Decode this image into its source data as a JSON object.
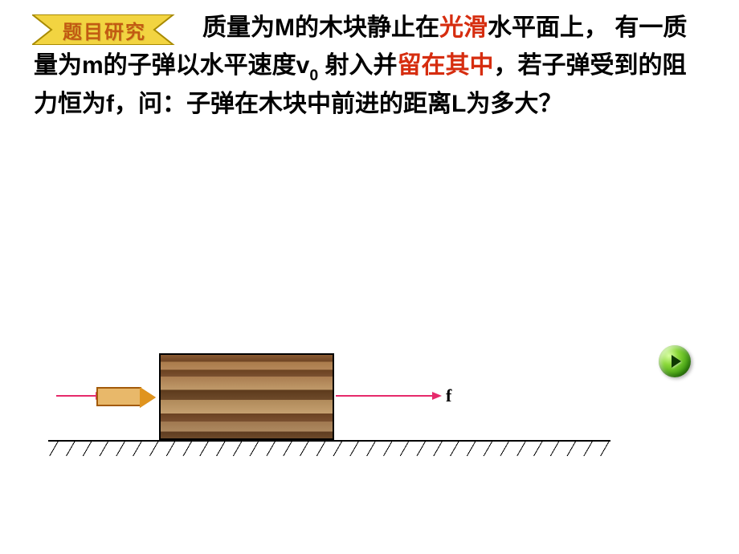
{
  "banner": {
    "label": "题目研究",
    "fill": "#f2d441",
    "stroke": "#a88a00",
    "text_color": "#c25a12"
  },
  "problem": {
    "segments": [
      {
        "t": "质量为M的木块静止在",
        "hl": false
      },
      {
        "t": "光滑",
        "hl": true
      },
      {
        "t": "水平面上，  有一质量为m的子弹以水平速度v",
        "hl": false
      },
      {
        "t": "0",
        "sub": true
      },
      {
        "t": " 射入并",
        "hl": false
      },
      {
        "t": "留在其中",
        "hl": true
      },
      {
        "t": "，若子弹受到的阻力恒为f，问：子弹在木块中前进的距离L为多大？",
        "hl": false
      }
    ],
    "highlight_color": "#d62d0f",
    "font_size": 30
  },
  "diagram": {
    "f_label": "f",
    "arrow_color": "#e62a6b",
    "bullet_fill": "#e8b86a",
    "bullet_border": "#a35a0a",
    "bullet_tip_fill": "#e0941e",
    "ground_color": "#000000"
  },
  "controls": {
    "play_button": {
      "name": "play-button",
      "colors": {
        "light": "#8ad838",
        "dark": "#1a5800"
      }
    }
  }
}
